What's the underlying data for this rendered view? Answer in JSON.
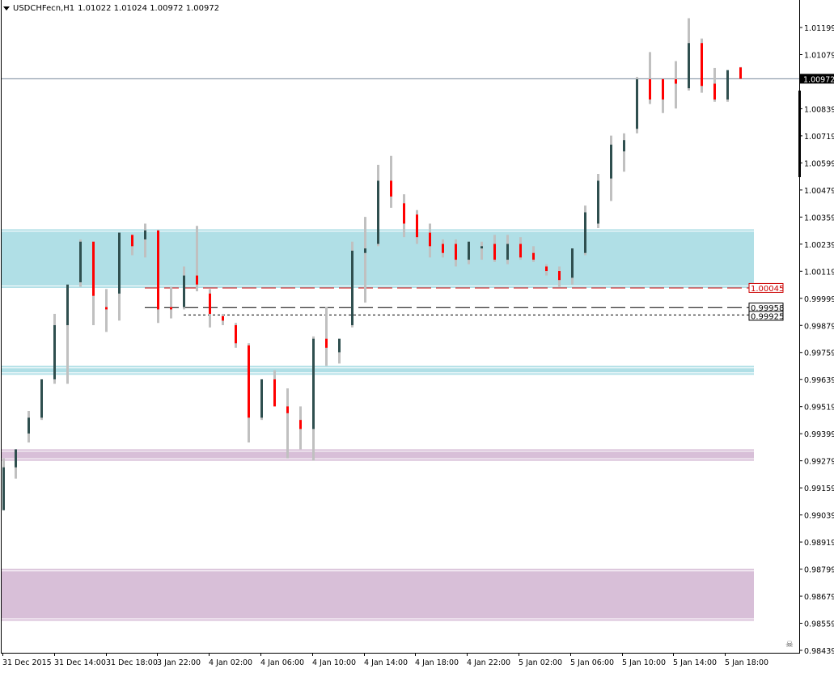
{
  "header": {
    "symbol": "USDCHFecn,H1",
    "ohlc": "1.01022 1.01024 1.00972 1.00972",
    "menu_icon": "triangle-down-icon"
  },
  "price_axis": {
    "current_price_label": "1.00972",
    "ticks": [
      "1.01199",
      "1.01079",
      "1.00839",
      "1.00719",
      "1.00599",
      "1.00479",
      "1.00359",
      "1.00239",
      "1.00119",
      "0.99999",
      "0.99879",
      "0.99759",
      "0.99639",
      "0.99519",
      "0.99399",
      "0.99279",
      "0.99159",
      "0.99039",
      "0.98919",
      "0.98799",
      "0.98679",
      "0.98559",
      "0.98439"
    ]
  },
  "time_axis": {
    "ticks": [
      "31 Dec 2015",
      "31 Dec 14:00",
      "31 Dec 18:00",
      "3 Jan 22:00",
      "4 Jan 02:00",
      "4 Jan 06:00",
      "4 Jan 10:00",
      "4 Jan 14:00",
      "4 Jan 18:00",
      "4 Jan 22:00",
      "5 Jan 02:00",
      "5 Jan 06:00",
      "5 Jan 10:00",
      "5 Jan 14:00",
      "5 Jan 18:00"
    ]
  },
  "level_labels": {
    "red_level": "1.00045",
    "dashed_level": "0.99958",
    "dotted_level": "0.99925"
  },
  "corner_icon": "skull-crossbones-icon",
  "colors": {
    "bull_body": "#2f4f4f",
    "bear_body": "#ff0000",
    "wick": "#c0c0c0",
    "zone_cyan": "#b0dfe6",
    "zone_purple": "#d8bfd8",
    "current_line": "#778899"
  },
  "chart_data": {
    "type": "candlestick",
    "title": "USDCHFecn,H1",
    "xlabel": "",
    "ylabel": "",
    "ylim": [
      0.98439,
      1.0125
    ],
    "grid": false,
    "categories": [
      "31 Dec 2015",
      "31 Dec 14:00",
      "31 Dec 18:00",
      "3 Jan 22:00",
      "4 Jan 02:00",
      "4 Jan 06:00",
      "4 Jan 10:00",
      "4 Jan 14:00",
      "4 Jan 18:00",
      "4 Jan 22:00",
      "5 Jan 02:00",
      "5 Jan 06:00",
      "5 Jan 10:00",
      "5 Jan 14:00",
      "5 Jan 18:00"
    ],
    "last_bar": {
      "open": 1.01022,
      "high": 1.01024,
      "low": 1.00972,
      "close": 1.00972
    },
    "horizontal_levels": [
      {
        "name": "red dashed level",
        "value": 1.00045,
        "color": "#cc0000",
        "style": "dashed"
      },
      {
        "name": "black dashed level",
        "value": 0.99958,
        "color": "#000000",
        "style": "dashed"
      },
      {
        "name": "black dotted level",
        "value": 0.99925,
        "color": "#000000",
        "style": "dotted"
      },
      {
        "name": "current price",
        "value": 1.00972,
        "color": "#778899",
        "style": "solid"
      }
    ],
    "zones": [
      {
        "color": "cyan",
        "from": 1.00045,
        "to": 1.00305
      },
      {
        "color": "cyan",
        "from": 0.9966,
        "to": 0.997
      },
      {
        "color": "purple",
        "from": 0.99279,
        "to": 0.9933
      },
      {
        "color": "purple",
        "from": 0.9857,
        "to": 0.988
      }
    ],
    "candles": [
      {
        "x": 4,
        "o": 0.9906,
        "h": 0.9929,
        "l": 0.9906,
        "c": 0.9925
      },
      {
        "x": 19,
        "o": 0.9925,
        "h": 0.9933,
        "l": 0.992,
        "c": 0.9933
      },
      {
        "x": 35,
        "o": 0.994,
        "h": 0.995,
        "l": 0.9936,
        "c": 0.9947
      },
      {
        "x": 51,
        "o": 0.9947,
        "h": 0.9958,
        "l": 0.9946,
        "c": 0.9964
      },
      {
        "x": 67,
        "o": 0.9964,
        "h": 0.9993,
        "l": 0.9962,
        "c": 0.9988
      },
      {
        "x": 83,
        "o": 0.9988,
        "h": 1.0005,
        "l": 0.9962,
        "c": 1.0006
      },
      {
        "x": 99,
        "o": 1.0007,
        "h": 1.0026,
        "l": 1.0005,
        "c": 1.0025
      },
      {
        "x": 115,
        "o": 1.0025,
        "h": 1.0025,
        "l": 0.9988,
        "c": 1.0001
      },
      {
        "x": 131,
        "o": 0.9996,
        "h": 1.0004,
        "l": 0.9985,
        "c": 0.9995
      },
      {
        "x": 147,
        "o": 1.0002,
        "h": 1.0029,
        "l": 0.999,
        "c": 1.0029
      },
      {
        "x": 163,
        "o": 1.0028,
        "h": 1.0028,
        "l": 1.0019,
        "c": 1.0023
      },
      {
        "x": 179,
        "o": 1.0026,
        "h": 1.0033,
        "l": 1.0018,
        "c": 1.003
      },
      {
        "x": 195,
        "o": 1.003,
        "h": 1.003,
        "l": 0.9989,
        "c": 0.9995
      },
      {
        "x": 211,
        "o": 0.9996,
        "h": 1.0005,
        "l": 0.9991,
        "c": 0.9995
      },
      {
        "x": 227,
        "o": 0.9996,
        "h": 1.0014,
        "l": 0.9995,
        "c": 1.001
      },
      {
        "x": 243,
        "o": 1.001,
        "h": 1.0032,
        "l": 1.0003,
        "c": 1.0006
      },
      {
        "x": 259,
        "o": 1.0002,
        "h": 1.0004,
        "l": 0.9987,
        "c": 0.9993
      },
      {
        "x": 275,
        "o": 0.9992,
        "h": 0.9993,
        "l": 0.9988,
        "c": 0.999
      },
      {
        "x": 291,
        "o": 0.9988,
        "h": 0.9989,
        "l": 0.9978,
        "c": 0.998
      },
      {
        "x": 307,
        "o": 0.9979,
        "h": 0.998,
        "l": 0.9936,
        "c": 0.9947
      },
      {
        "x": 323,
        "o": 0.9947,
        "h": 0.9964,
        "l": 0.9946,
        "c": 0.9964
      },
      {
        "x": 339,
        "o": 0.9964,
        "h": 0.9968,
        "l": 0.9954,
        "c": 0.9952
      },
      {
        "x": 355,
        "o": 0.9952,
        "h": 0.996,
        "l": 0.9929,
        "c": 0.9949
      },
      {
        "x": 371,
        "o": 0.9946,
        "h": 0.9952,
        "l": 0.9933,
        "c": 0.9942
      },
      {
        "x": 387,
        "o": 0.9942,
        "h": 0.9983,
        "l": 0.9928,
        "c": 0.9982
      },
      {
        "x": 403,
        "o": 0.9982,
        "h": 0.9996,
        "l": 0.997,
        "c": 0.9978
      },
      {
        "x": 419,
        "o": 0.9976,
        "h": 0.9982,
        "l": 0.9971,
        "c": 0.9982
      },
      {
        "x": 435,
        "o": 0.9988,
        "h": 1.0025,
        "l": 0.9987,
        "c": 1.0021
      },
      {
        "x": 451,
        "o": 1.002,
        "h": 1.0036,
        "l": 0.9998,
        "c": 1.0022
      },
      {
        "x": 467,
        "o": 1.0024,
        "h": 1.0059,
        "l": 1.0023,
        "c": 1.0052
      },
      {
        "x": 483,
        "o": 1.0052,
        "h": 1.0063,
        "l": 1.004,
        "c": 1.0045
      },
      {
        "x": 499,
        "o": 1.0042,
        "h": 1.0046,
        "l": 1.0027,
        "c": 1.0033
      },
      {
        "x": 515,
        "o": 1.0037,
        "h": 1.0039,
        "l": 1.0024,
        "c": 1.0027
      },
      {
        "x": 531,
        "o": 1.0029,
        "h": 1.0033,
        "l": 1.0018,
        "c": 1.0023
      },
      {
        "x": 547,
        "o": 1.0024,
        "h": 1.0026,
        "l": 1.0018,
        "c": 1.002
      },
      {
        "x": 563,
        "o": 1.0024,
        "h": 1.0026,
        "l": 1.0014,
        "c": 1.0017
      },
      {
        "x": 579,
        "o": 1.0017,
        "h": 1.0025,
        "l": 1.0015,
        "c": 1.0025
      },
      {
        "x": 595,
        "o": 1.0022,
        "h": 1.0025,
        "l": 1.0017,
        "c": 1.0023
      },
      {
        "x": 611,
        "o": 1.0024,
        "h": 1.0028,
        "l": 1.0016,
        "c": 1.0017
      },
      {
        "x": 627,
        "o": 1.0017,
        "h": 1.0028,
        "l": 1.0015,
        "c": 1.0024
      },
      {
        "x": 643,
        "o": 1.0024,
        "h": 1.0027,
        "l": 1.0017,
        "c": 1.0018
      },
      {
        "x": 659,
        "o": 1.002,
        "h": 1.0023,
        "l": 1.0016,
        "c": 1.0017
      },
      {
        "x": 675,
        "o": 1.0014,
        "h": 1.0015,
        "l": 1.001,
        "c": 1.0012
      },
      {
        "x": 691,
        "o": 1.0012,
        "h": 1.0014,
        "l": 1.0005,
        "c": 1.0008
      },
      {
        "x": 707,
        "o": 1.0009,
        "h": 1.0022,
        "l": 1.0006,
        "c": 1.0022
      },
      {
        "x": 723,
        "o": 1.002,
        "h": 1.0041,
        "l": 1.0019,
        "c": 1.0038
      },
      {
        "x": 739,
        "o": 1.0033,
        "h": 1.0055,
        "l": 1.0031,
        "c": 1.0052
      },
      {
        "x": 755,
        "o": 1.0053,
        "h": 1.0072,
        "l": 1.0043,
        "c": 1.0068
      },
      {
        "x": 771,
        "o": 1.0065,
        "h": 1.0073,
        "l": 1.0056,
        "c": 1.007
      },
      {
        "x": 787,
        "o": 1.0075,
        "h": 1.0098,
        "l": 1.0073,
        "c": 1.0097
      },
      {
        "x": 803,
        "o": 1.0097,
        "h": 1.0109,
        "l": 1.0086,
        "c": 1.0088
      },
      {
        "x": 819,
        "o": 1.0097,
        "h": 1.0097,
        "l": 1.0082,
        "c": 1.0088
      },
      {
        "x": 835,
        "o": 1.0097,
        "h": 1.0105,
        "l": 1.0084,
        "c": 1.0095
      },
      {
        "x": 851,
        "o": 1.0093,
        "h": 1.0124,
        "l": 1.0092,
        "c": 1.0113
      },
      {
        "x": 867,
        "o": 1.0113,
        "h": 1.0115,
        "l": 1.0091,
        "c": 1.0094
      },
      {
        "x": 883,
        "o": 1.0095,
        "h": 1.0102,
        "l": 1.0087,
        "c": 1.0088
      },
      {
        "x": 899,
        "o": 1.0088,
        "h": 1.0101,
        "l": 1.0087,
        "c": 1.0101
      },
      {
        "x": 915,
        "o": 1.01022,
        "h": 1.01024,
        "l": 1.00972,
        "c": 1.00972
      }
    ]
  }
}
